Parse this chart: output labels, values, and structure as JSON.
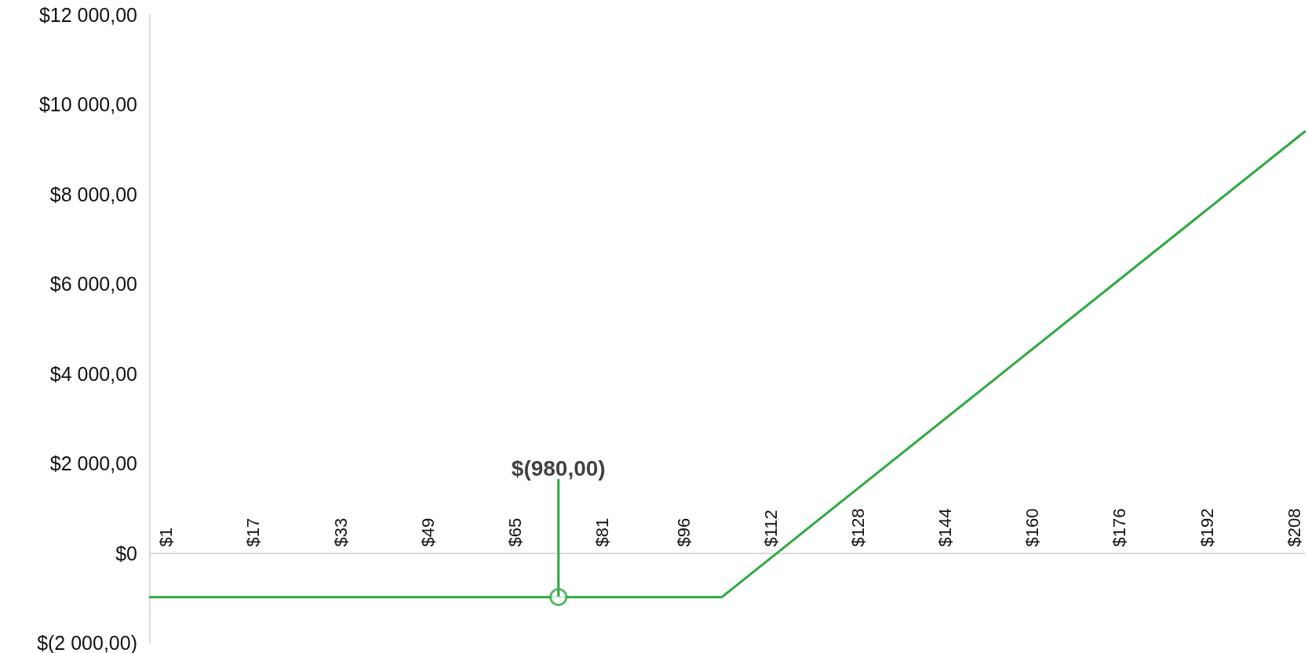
{
  "chart_data": {
    "type": "line",
    "x": [
      -2,
      103,
      210
    ],
    "series": [
      {
        "color": "#2ea843",
        "values": [
          -980,
          -980,
          9400
        ]
      },
      {
        "type": "scatter",
        "color": "#2ea843",
        "marker": "circle",
        "x": [
          73
        ],
        "values": [
          -980
        ]
      }
    ],
    "xlim": [
      -2,
      210
    ],
    "xticks": [
      {
        "value": 1,
        "label": "$1"
      },
      {
        "value": 17,
        "label": "$17"
      },
      {
        "value": 33,
        "label": "$33"
      },
      {
        "value": 49,
        "label": "$49"
      },
      {
        "value": 65,
        "label": "$65"
      },
      {
        "value": 81,
        "label": "$81"
      },
      {
        "value": 96,
        "label": "$96"
      },
      {
        "value": 112,
        "label": "$112"
      },
      {
        "value": 128,
        "label": "$128"
      },
      {
        "value": 144,
        "label": "$144"
      },
      {
        "value": 160,
        "label": "$160"
      },
      {
        "value": 176,
        "label": "$176"
      },
      {
        "value": 192,
        "label": "$192"
      },
      {
        "value": 208,
        "label": "$208"
      }
    ],
    "ylim": [
      -2000,
      12000
    ],
    "yticks": [
      {
        "value": -2000,
        "label": "$(2 000,00)"
      },
      {
        "value": 0,
        "label": "$0"
      },
      {
        "value": 2000,
        "label": "$2 000,00"
      },
      {
        "value": 4000,
        "label": "$4 000,00"
      },
      {
        "value": 6000,
        "label": "$6 000,00"
      },
      {
        "value": 8000,
        "label": "$8 000,00"
      },
      {
        "value": 10000,
        "label": "$10 000,00"
      },
      {
        "value": 12000,
        "label": "$12 000,00"
      }
    ],
    "annotations": [
      {
        "text": "$(980,00)",
        "x": 73,
        "y": -980
      }
    ],
    "grid": false,
    "marker": "none",
    "line_style": "solid"
  }
}
